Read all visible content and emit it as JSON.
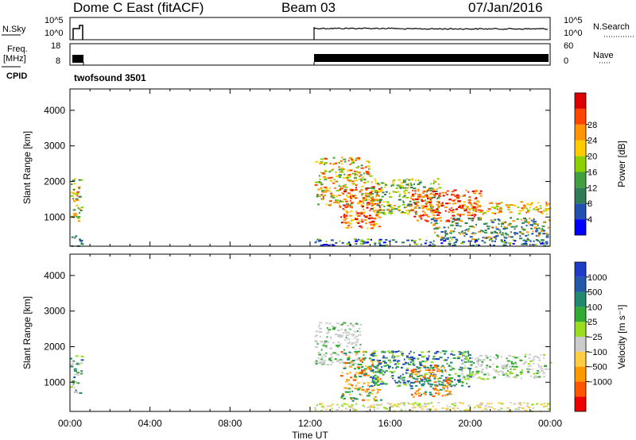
{
  "header": {
    "radar": "Dome C East (fitACF)",
    "beam": "Beam 03",
    "date": "07/Jan/2016"
  },
  "nsky": {
    "label": "N.Sky",
    "ticks": [
      "10^5",
      "10^0"
    ],
    "right_label": "N.Search",
    "right_ticks": [
      "10^5",
      "10^0"
    ]
  },
  "freq": {
    "label_line1": "Freq.",
    "label_line2": "[MHz]",
    "ticks": [
      "18",
      "8"
    ],
    "right_label": "Nave",
    "right_ticks": [
      "60",
      "0"
    ]
  },
  "cpid": {
    "label": "CPID",
    "text": "twofsound 3501"
  },
  "colors": {
    "power": [
      "#0000ff",
      "#2050b0",
      "#2e7d55",
      "#40a040",
      "#8cd000",
      "#ffcc00",
      "#ff9500",
      "#ff4500",
      "#dd0000"
    ],
    "velocity": [
      "#ee0000",
      "#ff5500",
      "#ff9900",
      "#ffcc44",
      "#cccccc",
      "#99dd22",
      "#33aa33",
      "#22886e",
      "#225aaa",
      "#1e3cc8"
    ]
  },
  "chart_data": [
    {
      "type": "heatmap",
      "quantity": "Power",
      "ylabel": "Slant Range [km]",
      "xlim_hours": [
        0,
        24
      ],
      "ylim": [
        180,
        4600
      ],
      "yticks": [
        "1000",
        "2000",
        "3000",
        "4000"
      ],
      "colorbar_label": "Power [dB]",
      "colorbar_ticks": [
        "4",
        "8",
        "12",
        "16",
        "20",
        "24",
        "28"
      ],
      "regions": [
        {
          "t": [
            0.0,
            0.55
          ],
          "r": [
            900,
            2100
          ],
          "c": [
            2,
            3,
            4,
            5,
            6,
            7
          ]
        },
        {
          "t": [
            0.0,
            0.55
          ],
          "r": [
            200,
            500
          ],
          "c": [
            1,
            2
          ]
        },
        {
          "t": [
            12.2,
            24.0
          ],
          "r": [
            200,
            400
          ],
          "c": [
            0,
            1,
            2,
            4
          ]
        },
        {
          "t": [
            12.2,
            15.0
          ],
          "r": [
            1300,
            2700
          ],
          "c": [
            3,
            4,
            5,
            6,
            7
          ]
        },
        {
          "t": [
            13.5,
            15.5
          ],
          "r": [
            700,
            1900
          ],
          "c": [
            5,
            6,
            7,
            8
          ]
        },
        {
          "t": [
            15.0,
            18.5
          ],
          "r": [
            1100,
            2100
          ],
          "c": [
            2,
            3,
            4,
            5,
            6
          ]
        },
        {
          "t": [
            17.0,
            20.5
          ],
          "r": [
            900,
            1800
          ],
          "c": [
            6,
            7,
            8
          ]
        },
        {
          "t": [
            19.5,
            24.0
          ],
          "r": [
            1100,
            1450
          ],
          "c": [
            4,
            5,
            6,
            7
          ]
        },
        {
          "t": [
            18.0,
            24.0
          ],
          "r": [
            400,
            1000
          ],
          "c": [
            1,
            2,
            3,
            6
          ]
        }
      ]
    },
    {
      "type": "heatmap",
      "quantity": "Velocity",
      "xlabel": "Time UT",
      "ylabel": "Slant Range [km]",
      "xlim_hours": [
        0,
        24
      ],
      "xticks": [
        "00:00",
        "04:00",
        "08:00",
        "12:00",
        "16:00",
        "20:00",
        "00:00"
      ],
      "ylim": [
        180,
        4600
      ],
      "yticks": [
        "1000",
        "2000",
        "3000",
        "4000"
      ],
      "colorbar_label": "Velocity [m s⁻¹]",
      "colorbar_ticks": [
        "1000",
        "500",
        "100",
        "25",
        "−25",
        "−100",
        "−500",
        "−1000"
      ],
      "regions": [
        {
          "t": [
            0.0,
            0.55
          ],
          "r": [
            700,
            1800
          ],
          "c": [
            4,
            5,
            6,
            7,
            8
          ]
        },
        {
          "t": [
            12.2,
            14.5
          ],
          "r": [
            1500,
            2700
          ],
          "c": [
            4,
            4,
            4,
            6
          ]
        },
        {
          "t": [
            12.2,
            24.0
          ],
          "r": [
            200,
            450
          ],
          "c": [
            4,
            5,
            3
          ]
        },
        {
          "t": [
            13.5,
            15.5
          ],
          "r": [
            500,
            1900
          ],
          "c": [
            1,
            2,
            3,
            6,
            7
          ]
        },
        {
          "t": [
            15.0,
            20.0
          ],
          "r": [
            900,
            1900
          ],
          "c": [
            6,
            7,
            8,
            9,
            5
          ]
        },
        {
          "t": [
            17.0,
            19.0
          ],
          "r": [
            600,
            1500
          ],
          "c": [
            1,
            2,
            7
          ]
        },
        {
          "t": [
            19.5,
            24.0
          ],
          "r": [
            1100,
            1800
          ],
          "c": [
            4,
            4,
            5,
            6
          ]
        }
      ]
    }
  ]
}
